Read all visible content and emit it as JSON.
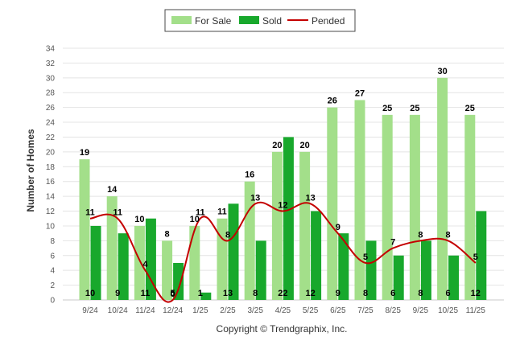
{
  "chart_data": {
    "type": "bar",
    "categories": [
      "9/24",
      "10/24",
      "11/24",
      "12/24",
      "1/25",
      "2/25",
      "3/25",
      "4/25",
      "5/25",
      "6/25",
      "7/25",
      "8/25",
      "9/25",
      "10/25",
      "11/25"
    ],
    "series": [
      {
        "name": "For Sale",
        "type": "bar",
        "color": "#a3df8a",
        "values": [
          19,
          14,
          10,
          8,
          10,
          11,
          16,
          20,
          20,
          26,
          27,
          25,
          25,
          30,
          25
        ]
      },
      {
        "name": "Sold",
        "type": "bar",
        "color": "#18a82c",
        "values": [
          10,
          9,
          11,
          5,
          1,
          13,
          8,
          22,
          12,
          9,
          8,
          6,
          8,
          6,
          12
        ]
      },
      {
        "name": "Pended",
        "type": "line",
        "color": "#c40000",
        "values": [
          11,
          11,
          4,
          0,
          11,
          8,
          13,
          12,
          13,
          9,
          5,
          7,
          8,
          8,
          5
        ]
      }
    ],
    "ylabel": "Number of Homes",
    "xlabel": "",
    "ylim": [
      0,
      34
    ],
    "yticks": [
      0,
      2,
      4,
      6,
      8,
      10,
      12,
      14,
      16,
      18,
      20,
      22,
      24,
      26,
      28,
      30,
      32,
      34
    ],
    "grid": true,
    "legend_position": "top-center",
    "point_labels": {
      "For Sale": [
        "19",
        "14",
        "10",
        "8",
        "10",
        "11",
        "16",
        "20",
        "20",
        "26",
        "27",
        "25",
        "25",
        "30",
        "25"
      ],
      "Sold": [
        "10",
        "9",
        "11",
        "5",
        "1",
        "13",
        "8",
        "22",
        "12",
        "9",
        "8",
        "6",
        "8",
        "6",
        "12"
      ],
      "Pended": [
        "11",
        "11",
        "4",
        "0",
        "11",
        "8",
        "13",
        "12",
        "13",
        "9",
        "5",
        "7",
        "8",
        "8",
        "5"
      ]
    }
  },
  "footer": {
    "credit": "Copyright © Trendgraphix, Inc."
  }
}
